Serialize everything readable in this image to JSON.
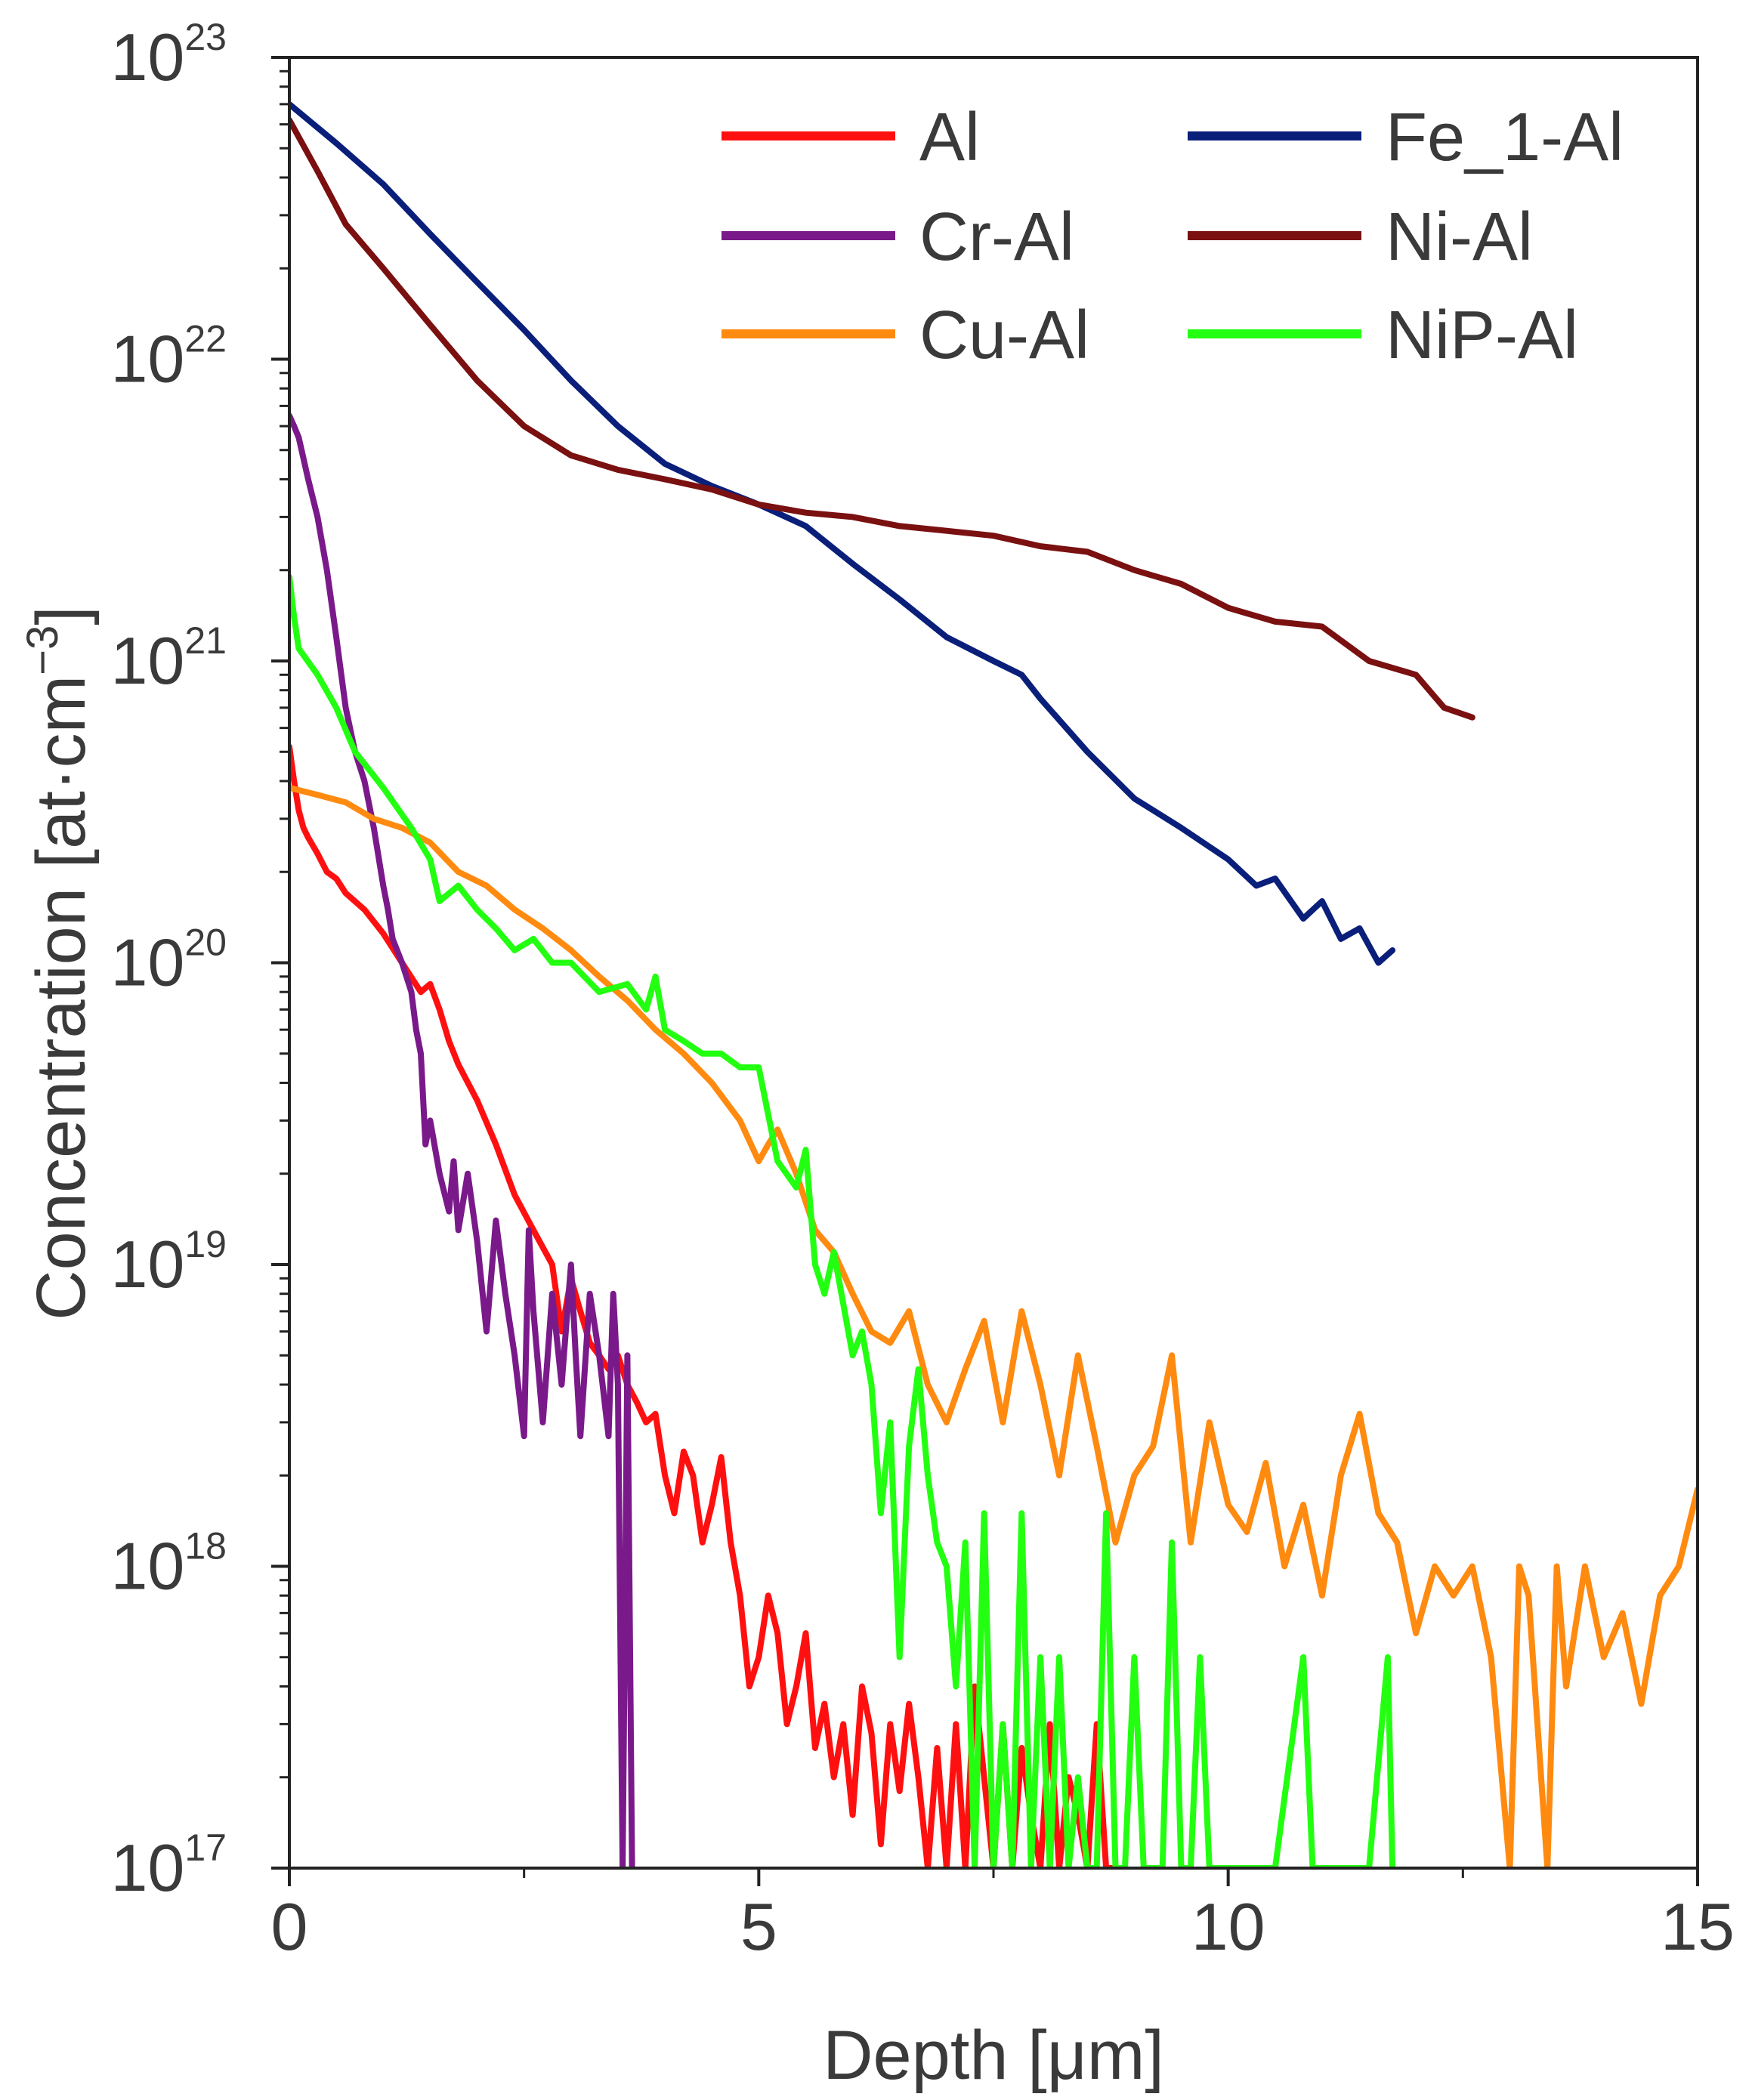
{
  "chart_data": {
    "type": "line",
    "title": "",
    "xlabel": "Depth [μm]",
    "ylabel_prefix": "Concentration [at·cm",
    "ylabel_exp": "−3",
    "ylabel_suffix": "]",
    "xlim": [
      0,
      15
    ],
    "ylog": true,
    "ylim_exp": [
      17,
      23
    ],
    "x_ticks": [
      0,
      5,
      10,
      15
    ],
    "y_tick_base": "10",
    "y_ticks": [
      "17",
      "18",
      "19",
      "20",
      "21",
      "22",
      "23"
    ],
    "legend_position": "top-right",
    "series": [
      {
        "name": "Al",
        "color": "#ff1010",
        "legend_col": 0,
        "legend_row": 0,
        "x": [
          0,
          0.05,
          0.1,
          0.15,
          0.2,
          0.3,
          0.4,
          0.5,
          0.6,
          0.8,
          1.0,
          1.2,
          1.4,
          1.5,
          1.6,
          1.7,
          1.8,
          2.0,
          2.2,
          2.4,
          2.6,
          2.8,
          2.9,
          3.0,
          3.1,
          3.2,
          3.3,
          3.4,
          3.5,
          3.6,
          3.7,
          3.8,
          3.9,
          4.0,
          4.1,
          4.2,
          4.3,
          4.4,
          4.5,
          4.6,
          4.7,
          4.8,
          4.9,
          5.0,
          5.1,
          5.2,
          5.3,
          5.4,
          5.5,
          5.6,
          5.7,
          5.8,
          5.9,
          6.0,
          6.1,
          6.2,
          6.3,
          6.4,
          6.5,
          6.6,
          6.7,
          6.8,
          6.9,
          7.0,
          7.1,
          7.2,
          7.3,
          7.4,
          7.5,
          7.6,
          7.7,
          7.8,
          7.9,
          8.0,
          8.1,
          8.2,
          8.3,
          8.4,
          8.5,
          8.6,
          8.7,
          8.8
        ],
        "y": [
          5.2e+20,
          4e+20,
          3.2e+20,
          2.8e+20,
          2.6e+20,
          2.3e+20,
          2e+20,
          1.9e+20,
          1.7e+20,
          1.5e+20,
          1.25e+20,
          1e+20,
          8e+19,
          8.5e+19,
          7e+19,
          5.5e+19,
          4.6e+19,
          3.5e+19,
          2.5e+19,
          1.7e+19,
          1.3e+19,
          1e+19,
          6e+18,
          9e+18,
          7e+18,
          5.5e+18,
          5e+18,
          4.5e+18,
          5e+18,
          4e+18,
          3.5e+18,
          3e+18,
          3.2e+18,
          2e+18,
          1.5e+18,
          2.4e+18,
          2e+18,
          1.2e+18,
          1.6e+18,
          2.3e+18,
          1.2e+18,
          8e+17,
          4e+17,
          5e+17,
          8e+17,
          6e+17,
          3e+17,
          4e+17,
          6e+17,
          2.5e+17,
          3.5e+17,
          2e+17,
          3e+17,
          1.5e+17,
          4e+17,
          2.8e+17,
          1.2e+17,
          3e+17,
          1.8e+17,
          3.5e+17,
          2e+17,
          1e+17,
          2.5e+17,
          1e+17,
          3e+17,
          1e+17,
          4e+17,
          2e+17,
          1e+17,
          3e+17,
          1e+17,
          2.5e+17,
          1.5e+17,
          1e+17,
          3e+17,
          1e+17,
          2e+17,
          1.5e+17,
          1e+17,
          3e+17,
          1e+17,
          1e+17
        ]
      },
      {
        "name": "Cr-Al",
        "color": "#7a1a8a",
        "legend_col": 0,
        "legend_row": 1,
        "x": [
          0,
          0.05,
          0.1,
          0.2,
          0.3,
          0.4,
          0.5,
          0.6,
          0.7,
          0.8,
          0.9,
          1.0,
          1.05,
          1.1,
          1.2,
          1.3,
          1.35,
          1.4,
          1.45,
          1.5,
          1.6,
          1.7,
          1.75,
          1.8,
          1.9,
          2.0,
          2.1,
          2.2,
          2.3,
          2.4,
          2.5,
          2.55,
          2.6,
          2.7,
          2.8,
          2.9,
          3.0,
          3.05,
          3.1,
          3.2,
          3.3,
          3.4,
          3.45,
          3.5,
          3.55,
          3.6,
          3.65
        ],
        "y": [
          6.5e+21,
          6e+21,
          5.5e+21,
          4e+21,
          3e+21,
          2e+21,
          1.2e+21,
          7e+20,
          5e+20,
          4e+20,
          2.8e+20,
          1.8e+20,
          1.5e+20,
          1.2e+20,
          1e+20,
          8e+19,
          6e+19,
          5e+19,
          2.5e+19,
          3e+19,
          2e+19,
          1.5e+19,
          2.2e+19,
          1.3e+19,
          2e+19,
          1.2e+19,
          6e+18,
          1.4e+19,
          8e+18,
          5e+18,
          2.7e+18,
          1.3e+19,
          7e+18,
          3e+18,
          8e+18,
          4e+18,
          1e+19,
          5e+18,
          2.7e+18,
          8e+18,
          5e+18,
          2.7e+18,
          8e+18,
          4e+18,
          1e+17,
          5e+18,
          1e+17
        ]
      },
      {
        "name": "Cu-Al",
        "color": "#ff8a10",
        "legend_col": 0,
        "legend_row": 2,
        "x": [
          0,
          0.3,
          0.6,
          0.9,
          1.2,
          1.5,
          1.8,
          2.1,
          2.4,
          2.7,
          3.0,
          3.3,
          3.6,
          3.9,
          4.2,
          4.5,
          4.8,
          5.0,
          5.1,
          5.2,
          5.4,
          5.6,
          5.8,
          6.0,
          6.2,
          6.4,
          6.6,
          6.8,
          7.0,
          7.2,
          7.4,
          7.6,
          7.8,
          8.0,
          8.2,
          8.4,
          8.6,
          8.8,
          9.0,
          9.2,
          9.4,
          9.6,
          9.8,
          10.0,
          10.2,
          10.4,
          10.6,
          10.8,
          11.0,
          11.2,
          11.4,
          11.6,
          11.8,
          12.0,
          12.2,
          12.4,
          12.6,
          12.8,
          13.0,
          13.1,
          13.2,
          13.4,
          13.5,
          13.6,
          13.8,
          14.0,
          14.2,
          14.4,
          14.6,
          14.8,
          15.0
        ],
        "y": [
          3.8e+20,
          3.6e+20,
          3.4e+20,
          3e+20,
          2.8e+20,
          2.5e+20,
          2e+20,
          1.8e+20,
          1.5e+20,
          1.3e+20,
          1.1e+20,
          9e+19,
          7.5e+19,
          6e+19,
          5e+19,
          4e+19,
          3e+19,
          2.2e+19,
          2.5e+19,
          2.8e+19,
          2e+19,
          1.3e+19,
          1.1e+19,
          8e+18,
          6e+18,
          5.5e+18,
          7e+18,
          4e+18,
          3e+18,
          4.5e+18,
          6.5e+18,
          3e+18,
          7e+18,
          4e+18,
          2e+18,
          5e+18,
          2.5e+18,
          1.2e+18,
          2e+18,
          2.5e+18,
          5e+18,
          1.2e+18,
          3e+18,
          1.6e+18,
          1.3e+18,
          2.2e+18,
          1e+18,
          1.6e+18,
          8e+17,
          2e+18,
          3.2e+18,
          1.5e+18,
          1.2e+18,
          6e+17,
          1e+18,
          8e+17,
          1e+18,
          5e+17,
          1e+17,
          1e+18,
          8e+17,
          1e+17,
          1e+18,
          4e+17,
          1e+18,
          5e+17,
          7e+17,
          3.5e+17,
          8e+17,
          1e+18,
          1.8e+18
        ]
      },
      {
        "name": "Fe_1-Al",
        "color": "#0a1f7a",
        "legend_col": 1,
        "legend_row": 0,
        "x": [
          0,
          0.5,
          1.0,
          1.5,
          2.0,
          2.5,
          3.0,
          3.5,
          4.0,
          4.5,
          5.0,
          5.5,
          6.0,
          6.5,
          7.0,
          7.5,
          7.8,
          8.0,
          8.5,
          9.0,
          9.5,
          10.0,
          10.3,
          10.5,
          10.8,
          11.0,
          11.2,
          11.4,
          11.6,
          11.75
        ],
        "y": [
          7e+22,
          5.2e+22,
          3.8e+22,
          2.6e+22,
          1.8e+22,
          1.25e+22,
          8.5e+21,
          6e+21,
          4.5e+21,
          3.8e+21,
          3.3e+21,
          2.8e+21,
          2.1e+21,
          1.6e+21,
          1.2e+21,
          1e+21,
          9e+20,
          7.5e+20,
          5e+20,
          3.5e+20,
          2.8e+20,
          2.2e+20,
          1.8e+20,
          1.9e+20,
          1.4e+20,
          1.6e+20,
          1.2e+20,
          1.3e+20,
          1e+20,
          1.1e+20
        ]
      },
      {
        "name": "Ni-Al",
        "color": "#7a1010",
        "legend_col": 1,
        "legend_row": 1,
        "x": [
          0,
          0.3,
          0.6,
          1.0,
          1.5,
          2.0,
          2.5,
          3.0,
          3.5,
          4.0,
          4.5,
          5.0,
          5.5,
          6.0,
          6.5,
          7.0,
          7.5,
          8.0,
          8.5,
          9.0,
          9.5,
          10.0,
          10.5,
          11.0,
          11.5,
          12.0,
          12.3,
          12.6
        ],
        "y": [
          6.2e+22,
          4.2e+22,
          2.8e+22,
          2e+22,
          1.3e+22,
          8.5e+21,
          6e+21,
          4.8e+21,
          4.3e+21,
          4e+21,
          3.7e+21,
          3.3e+21,
          3.1e+21,
          3e+21,
          2.8e+21,
          2.7e+21,
          2.6e+21,
          2.4e+21,
          2.3e+21,
          2e+21,
          1.8e+21,
          1.5e+21,
          1.35e+21,
          1.3e+21,
          1e+21,
          9e+20,
          7e+20,
          6.5e+20
        ]
      },
      {
        "name": "NiP-Al",
        "color": "#22ff10",
        "legend_col": 1,
        "legend_row": 2,
        "x": [
          0,
          0.05,
          0.1,
          0.3,
          0.5,
          0.7,
          1.0,
          1.3,
          1.5,
          1.6,
          1.8,
          2.0,
          2.2,
          2.4,
          2.6,
          2.8,
          3.0,
          3.3,
          3.6,
          3.8,
          3.9,
          4.0,
          4.2,
          4.4,
          4.6,
          4.8,
          5.0,
          5.2,
          5.4,
          5.5,
          5.6,
          5.7,
          5.8,
          6.0,
          6.1,
          6.2,
          6.3,
          6.4,
          6.5,
          6.6,
          6.7,
          6.8,
          6.9,
          7.0,
          7.1,
          7.2,
          7.3,
          7.4,
          7.5,
          7.6,
          7.7,
          7.8,
          7.9,
          8.0,
          8.1,
          8.2,
          8.3,
          8.4,
          8.5,
          8.6,
          8.7,
          8.8,
          8.9,
          9.0,
          9.1,
          9.2,
          9.3,
          9.4,
          9.5,
          9.6,
          9.7,
          9.8,
          10.0,
          10.5,
          10.8,
          10.9,
          11.0,
          11.5,
          11.7,
          11.75
        ],
        "y": [
          1.9e+21,
          1.4e+21,
          1.1e+21,
          9e+20,
          7e+20,
          5e+20,
          3.8e+20,
          2.8e+20,
          2.2e+20,
          1.6e+20,
          1.8e+20,
          1.5e+20,
          1.3e+20,
          1.1e+20,
          1.2e+20,
          1e+20,
          1e+20,
          8e+19,
          8.5e+19,
          7e+19,
          9e+19,
          6e+19,
          5.5e+19,
          5e+19,
          5e+19,
          4.5e+19,
          4.5e+19,
          2.2e+19,
          1.8e+19,
          2.4e+19,
          1e+19,
          8e+18,
          1.1e+19,
          5e+18,
          6e+18,
          4e+18,
          1.5e+18,
          3e+18,
          5e+17,
          2.5e+18,
          4.5e+18,
          2e+18,
          1.2e+18,
          1e+18,
          4e+17,
          1.2e+18,
          1e+17,
          1.5e+18,
          1e+17,
          3e+17,
          1e+17,
          1.5e+18,
          1e+17,
          5e+17,
          1e+17,
          5e+17,
          1e+17,
          2e+17,
          1e+17,
          1e+17,
          1.5e+18,
          1e+17,
          1e+17,
          5e+17,
          1e+17,
          1e+17,
          1e+17,
          1.2e+18,
          1e+17,
          1e+17,
          5e+17,
          1e+17,
          1e+17,
          1e+17,
          5e+17,
          1e+17,
          1e+17,
          1e+17,
          5e+17,
          1e+17
        ]
      }
    ]
  }
}
